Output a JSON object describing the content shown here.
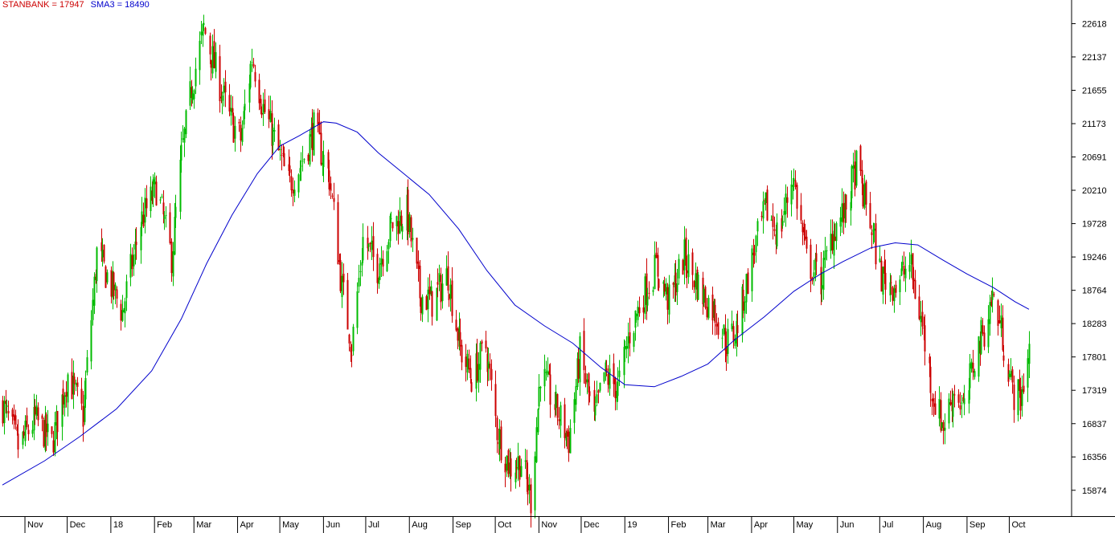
{
  "legend": {
    "series_label": "STANBANK = 17947",
    "sma_label": "SMA3 = 18490"
  },
  "colors": {
    "up_candle": "#00bb00",
    "down_candle": "#cc0000",
    "sma_line": "#0000cc",
    "series_text": "#cc0000",
    "sma_text": "#0000cc",
    "axis": "#000000",
    "background": "#ffffff"
  },
  "chart_data": {
    "type": "candlestick",
    "title": "",
    "xlabel": "",
    "ylabel": "",
    "ylim": [
      15500,
      22960
    ],
    "yticks": [
      15874,
      16356,
      16837,
      17319,
      17801,
      18283,
      18764,
      19246,
      19728,
      20210,
      20691,
      21173,
      21655,
      22137,
      22618
    ],
    "xticks": [
      {
        "label": "Nov",
        "date": "2017-11-01"
      },
      {
        "label": "Dec",
        "date": "2017-12-01"
      },
      {
        "label": "18",
        "date": "2018-01-01"
      },
      {
        "label": "Feb",
        "date": "2018-02-01"
      },
      {
        "label": "Mar",
        "date": "2018-03-01"
      },
      {
        "label": "Apr",
        "date": "2018-04-01"
      },
      {
        "label": "May",
        "date": "2018-05-01"
      },
      {
        "label": "Jun",
        "date": "2018-06-01"
      },
      {
        "label": "Jul",
        "date": "2018-07-01"
      },
      {
        "label": "Aug",
        "date": "2018-08-01"
      },
      {
        "label": "Sep",
        "date": "2018-09-01"
      },
      {
        "label": "Oct",
        "date": "2018-10-01"
      },
      {
        "label": "Nov",
        "date": "2018-11-01"
      },
      {
        "label": "Dec",
        "date": "2018-12-01"
      },
      {
        "label": "19",
        "date": "2019-01-01"
      },
      {
        "label": "Feb",
        "date": "2019-02-01"
      },
      {
        "label": "Mar",
        "date": "2019-03-01"
      },
      {
        "label": "Apr",
        "date": "2019-04-01"
      },
      {
        "label": "May",
        "date": "2019-05-01"
      },
      {
        "label": "Jun",
        "date": "2019-06-01"
      },
      {
        "label": "Jul",
        "date": "2019-07-01"
      },
      {
        "label": "Aug",
        "date": "2019-08-01"
      },
      {
        "label": "Sep",
        "date": "2019-09-01"
      },
      {
        "label": "Oct",
        "date": "2019-10-01"
      }
    ],
    "date_range": [
      "2017-10-16",
      "2019-10-15"
    ],
    "series": [
      {
        "name": "STANBANK",
        "kind": "close",
        "points": [
          [
            "2017-10-16",
            17100
          ],
          [
            "2017-10-27",
            16500
          ],
          [
            "2017-11-08",
            16900
          ],
          [
            "2017-11-20",
            16550
          ],
          [
            "2017-12-01",
            17550
          ],
          [
            "2017-12-12",
            16950
          ],
          [
            "2017-12-22",
            19300
          ],
          [
            "2018-01-09",
            18450
          ],
          [
            "2018-01-22",
            19750
          ],
          [
            "2018-02-02",
            20250
          ],
          [
            "2018-02-13",
            19250
          ],
          [
            "2018-02-20",
            20700
          ],
          [
            "2018-02-27",
            21700
          ],
          [
            "2018-03-08",
            22550
          ],
          [
            "2018-03-16",
            21950
          ],
          [
            "2018-03-26",
            21250
          ],
          [
            "2018-04-03",
            20950
          ],
          [
            "2018-04-11",
            22150
          ],
          [
            "2018-04-19",
            21400
          ],
          [
            "2018-04-26",
            21000
          ],
          [
            "2018-05-07",
            20300
          ],
          [
            "2018-05-16",
            20600
          ],
          [
            "2018-05-25",
            21100
          ],
          [
            "2018-06-05",
            20400
          ],
          [
            "2018-06-14",
            18800
          ],
          [
            "2018-06-21",
            17950
          ],
          [
            "2018-06-29",
            19500
          ],
          [
            "2018-07-09",
            19100
          ],
          [
            "2018-07-19",
            19700
          ],
          [
            "2018-07-30",
            19900
          ],
          [
            "2018-08-08",
            18700
          ],
          [
            "2018-08-17",
            18600
          ],
          [
            "2018-08-28",
            19000
          ],
          [
            "2018-09-06",
            17900
          ],
          [
            "2018-09-14",
            17500
          ],
          [
            "2018-09-24",
            17950
          ],
          [
            "2018-10-02",
            16750
          ],
          [
            "2018-10-11",
            16200
          ],
          [
            "2018-10-19",
            16300
          ],
          [
            "2018-10-26",
            15750
          ],
          [
            "2018-11-02",
            17600
          ],
          [
            "2018-11-13",
            17050
          ],
          [
            "2018-11-22",
            16600
          ],
          [
            "2018-11-30",
            17850
          ],
          [
            "2018-12-10",
            16850
          ],
          [
            "2018-12-17",
            17550
          ],
          [
            "2018-12-27",
            17350
          ],
          [
            "2019-01-04",
            18150
          ],
          [
            "2019-01-14",
            18700
          ],
          [
            "2019-01-23",
            19100
          ],
          [
            "2019-02-01",
            18600
          ],
          [
            "2019-02-12",
            19250
          ],
          [
            "2019-02-25",
            18700
          ],
          [
            "2019-03-06",
            18450
          ],
          [
            "2019-03-14",
            18000
          ],
          [
            "2019-03-21",
            18200
          ],
          [
            "2019-04-02",
            19300
          ],
          [
            "2019-04-11",
            19950
          ],
          [
            "2019-04-20",
            19550
          ],
          [
            "2019-04-30",
            20450
          ],
          [
            "2019-05-10",
            19200
          ],
          [
            "2019-05-20",
            18900
          ],
          [
            "2019-05-29",
            19650
          ],
          [
            "2019-06-06",
            19900
          ],
          [
            "2019-06-14",
            20550
          ],
          [
            "2019-06-24",
            19750
          ],
          [
            "2019-07-02",
            18950
          ],
          [
            "2019-07-12",
            18850
          ],
          [
            "2019-07-22",
            19150
          ],
          [
            "2019-07-31",
            18250
          ],
          [
            "2019-08-08",
            17200
          ],
          [
            "2019-08-15",
            16800
          ],
          [
            "2019-08-23",
            17350
          ],
          [
            "2019-08-30",
            17000
          ],
          [
            "2019-09-06",
            17800
          ],
          [
            "2019-09-13",
            18200
          ],
          [
            "2019-09-19",
            18700
          ],
          [
            "2019-09-26",
            18100
          ],
          [
            "2019-10-03",
            17300
          ],
          [
            "2019-10-09",
            17200
          ],
          [
            "2019-10-15",
            17947
          ]
        ]
      },
      {
        "name": "SMA3",
        "kind": "line",
        "points": [
          [
            "2017-10-16",
            15950
          ],
          [
            "2017-11-15",
            16300
          ],
          [
            "2017-12-10",
            16650
          ],
          [
            "2018-01-05",
            17050
          ],
          [
            "2018-01-30",
            17600
          ],
          [
            "2018-02-20",
            18350
          ],
          [
            "2018-03-10",
            19150
          ],
          [
            "2018-03-28",
            19850
          ],
          [
            "2018-04-15",
            20450
          ],
          [
            "2018-05-01",
            20850
          ],
          [
            "2018-05-15",
            21000
          ],
          [
            "2018-06-01",
            21200
          ],
          [
            "2018-06-10",
            21180
          ],
          [
            "2018-06-25",
            21050
          ],
          [
            "2018-07-10",
            20750
          ],
          [
            "2018-07-28",
            20450
          ],
          [
            "2018-08-15",
            20150
          ],
          [
            "2018-09-05",
            19650
          ],
          [
            "2018-09-25",
            19050
          ],
          [
            "2018-10-15",
            18550
          ],
          [
            "2018-11-05",
            18250
          ],
          [
            "2018-11-25",
            18000
          ],
          [
            "2018-12-15",
            17650
          ],
          [
            "2019-01-01",
            17400
          ],
          [
            "2019-01-22",
            17370
          ],
          [
            "2019-02-10",
            17520
          ],
          [
            "2019-03-01",
            17700
          ],
          [
            "2019-03-20",
            18050
          ],
          [
            "2019-04-10",
            18380
          ],
          [
            "2019-05-01",
            18750
          ],
          [
            "2019-05-20",
            19000
          ],
          [
            "2019-06-05",
            19180
          ],
          [
            "2019-06-25",
            19380
          ],
          [
            "2019-07-12",
            19450
          ],
          [
            "2019-07-28",
            19420
          ],
          [
            "2019-08-15",
            19200
          ],
          [
            "2019-09-01",
            19000
          ],
          [
            "2019-09-20",
            18800
          ],
          [
            "2019-10-05",
            18600
          ],
          [
            "2019-10-15",
            18490
          ]
        ]
      }
    ],
    "legend_position": "top-left",
    "grid": false
  }
}
